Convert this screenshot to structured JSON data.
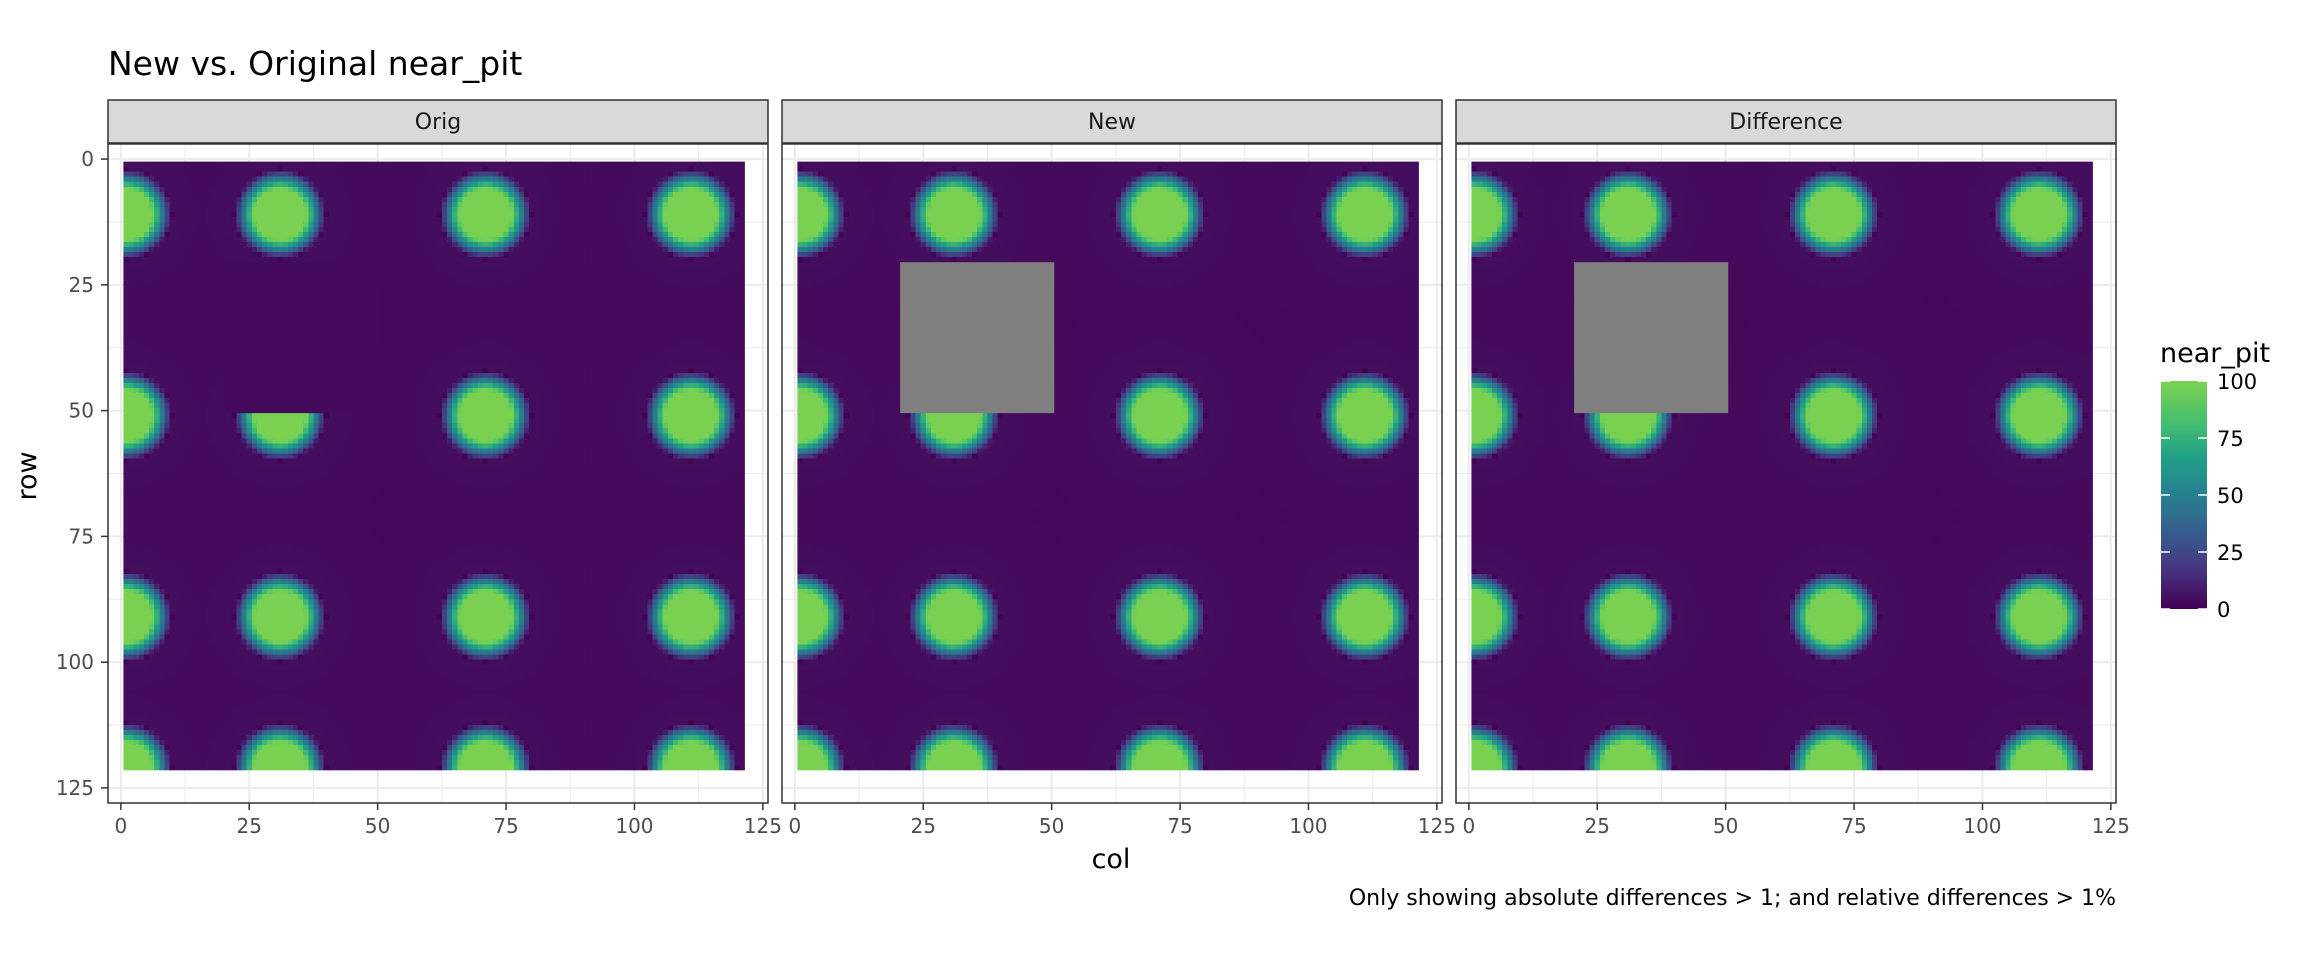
{
  "title": "New vs. Original near_pit",
  "caption": "Only showing absolute differences > 1; and relative differences > 1%",
  "colors": {
    "strip_fill": "#d9d9d9",
    "strip_border": "#333333",
    "grid": "#ebebeb",
    "missing": "#808080",
    "text": "#000000",
    "tick_text": "#4d4d4d"
  },
  "chart_data": {
    "type": "heatmap",
    "facets": [
      "Orig",
      "New",
      "Difference"
    ],
    "xlabel": "col",
    "ylabel": "row",
    "xlim": [
      0,
      125
    ],
    "ylim": [
      125,
      0
    ],
    "y_reversed": true,
    "x_ticks": [
      0,
      25,
      50,
      75,
      100,
      125
    ],
    "y_ticks": [
      0,
      25,
      50,
      75,
      100,
      125
    ],
    "grid_extent": {
      "cols": [
        1,
        121
      ],
      "rows": [
        1,
        121
      ]
    },
    "pit_centers": {
      "cols": [
        1,
        31,
        71,
        111
      ],
      "rows": [
        11,
        51,
        91,
        121
      ],
      "peak_value": 100,
      "radius": 6
    },
    "background_value": 5,
    "masked_region": {
      "col_range": [
        21,
        50
      ],
      "row_range": [
        21,
        50
      ]
    },
    "facet_masks": {
      "Orig": {
        "fill": "value",
        "value": 3
      },
      "New": {
        "fill": "missing"
      },
      "Difference": {
        "fill": "missing"
      }
    },
    "legend": {
      "title": "near_pit",
      "position": "right",
      "ticks": [
        0,
        25,
        50,
        75,
        100
      ],
      "range": [
        0,
        100
      ],
      "palette": [
        "#440154",
        "#46327e",
        "#365c8d",
        "#277f8e",
        "#1fa187",
        "#4ac16d",
        "#7ad151"
      ]
    },
    "grid": true
  }
}
